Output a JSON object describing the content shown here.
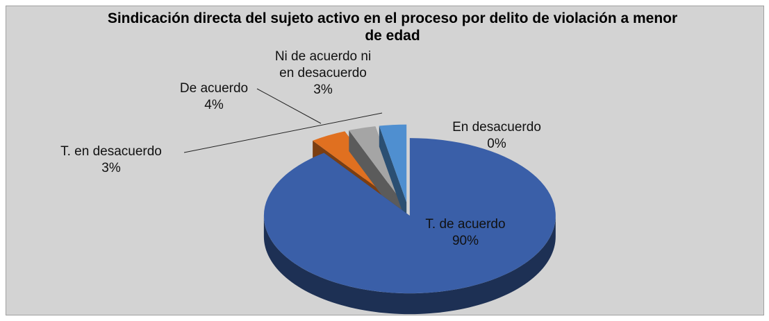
{
  "chart_data": {
    "type": "pie3d",
    "title": "Sindicación directa del sujeto activo en el proceso por delito de violación a menor de edad",
    "categories": [
      "T. de acuerdo",
      "De acuerdo",
      "Ni de acuerdo ni en desacuerdo",
      "En desacuerdo",
      "T. en desacuerdo"
    ],
    "values": [
      90,
      4,
      3,
      0,
      3
    ],
    "value_labels": [
      "90%",
      "4%",
      "3%",
      "0%",
      "3%"
    ],
    "colors": [
      "#3a5fa8",
      "#e07020",
      "#a5a5a5",
      "#ffc000",
      "#4f8fd0"
    ]
  }
}
